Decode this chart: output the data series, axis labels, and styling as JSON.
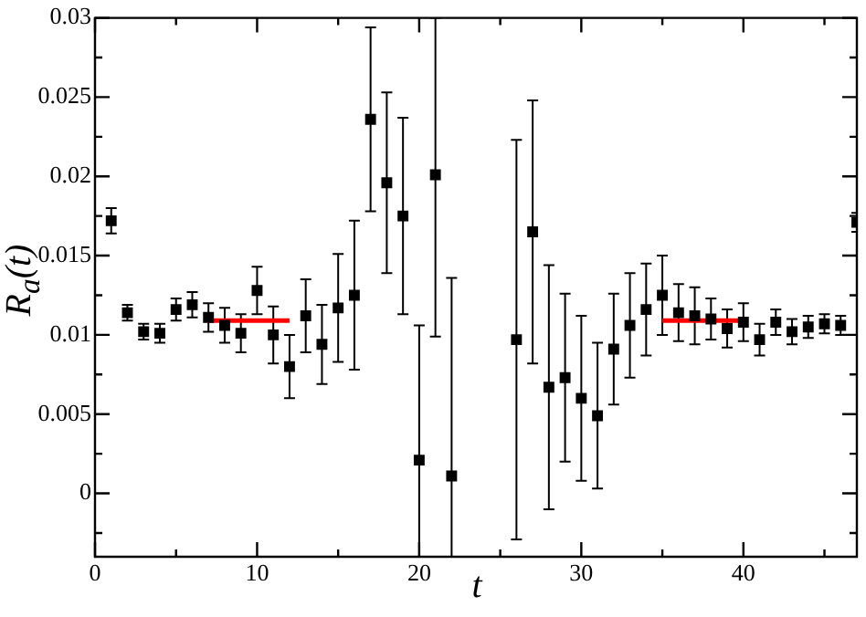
{
  "chart_data": {
    "type": "scatter",
    "xlabel": "t",
    "ylabel": "R$_{a}$(t)",
    "xlim": [
      0,
      47
    ],
    "ylim": [
      -0.004,
      0.03
    ],
    "xticks": [
      0,
      {
        "value": 5,
        "label": null
      },
      10,
      {
        "value": 15,
        "label": null
      },
      20,
      {
        "value": 25,
        "label": null
      },
      30,
      {
        "value": 35,
        "label": null
      },
      40,
      {
        "value": 45,
        "label": null
      }
    ],
    "yticks": [
      {
        "value": -0.0025,
        "label": null
      },
      0,
      {
        "value": 0.0025,
        "label": null
      },
      0.005,
      {
        "value": 0.0075,
        "label": null
      },
      0.01,
      {
        "value": 0.0125,
        "label": null
      },
      0.015,
      {
        "value": 0.0175,
        "label": null
      },
      0.02,
      {
        "value": 0.0225,
        "label": null
      },
      0.025,
      {
        "value": 0.0275,
        "label": null
      },
      0.03
    ],
    "marker": "square",
    "grid": false,
    "legend": false,
    "series": [
      {
        "color": "#000000",
        "x": [
          1,
          2,
          3,
          4,
          5,
          6,
          7,
          8,
          9,
          10,
          11,
          12,
          13,
          14,
          15,
          16,
          17,
          18,
          19,
          20,
          21,
          22,
          26,
          27,
          28,
          29,
          30,
          31,
          32,
          33,
          34,
          35,
          36,
          37,
          38,
          39,
          40,
          41,
          42,
          43,
          44,
          45,
          46,
          47
        ],
        "values": [
          0.0172,
          0.0114,
          0.0102,
          0.0101,
          0.0116,
          0.0119,
          0.0111,
          0.0106,
          0.0101,
          0.0128,
          0.01,
          0.008,
          0.0112,
          0.0094,
          0.0117,
          0.0125,
          0.0236,
          0.0196,
          0.0175,
          0.0021,
          0.0201,
          0.0011,
          0.0097,
          0.0165,
          0.0067,
          0.0073,
          0.006,
          0.0049,
          0.0091,
          0.0106,
          0.0116,
          0.0125,
          0.0114,
          0.0112,
          0.011,
          0.0104,
          0.0108,
          0.0097,
          0.0108,
          0.0102,
          0.0105,
          0.0107,
          0.0106,
          0.0171
        ],
        "errors": [
          0.0008,
          0.0005,
          0.0005,
          0.0006,
          0.0007,
          0.0008,
          0.0009,
          0.0011,
          0.0012,
          0.0015,
          0.0018,
          0.002,
          0.0023,
          0.0025,
          0.0034,
          0.0047,
          0.0058,
          0.0057,
          0.0062,
          [
            -0.004,
            0.0106
          ],
          [
            0.0099,
            0.03
          ],
          [
            -0.004,
            0.0136
          ],
          0.0126,
          0.0083,
          0.0077,
          0.0053,
          0.0052,
          0.0046,
          0.0035,
          0.0033,
          0.0029,
          0.0025,
          0.0018,
          0.0018,
          0.0013,
          0.0012,
          0.0012,
          0.001,
          0.0008,
          0.0008,
          0.0007,
          0.0006,
          0.0006,
          0.0006
        ]
      },
      {
        "type": "line",
        "color": "#ff0000",
        "x": [
          7,
          12
        ],
        "values": [
          0.0109,
          0.0109
        ],
        "marker": "none"
      },
      {
        "type": "line",
        "color": "#ff0000",
        "x": [
          35,
          40
        ],
        "values": [
          0.0109,
          0.0109
        ],
        "marker": "none"
      }
    ]
  }
}
